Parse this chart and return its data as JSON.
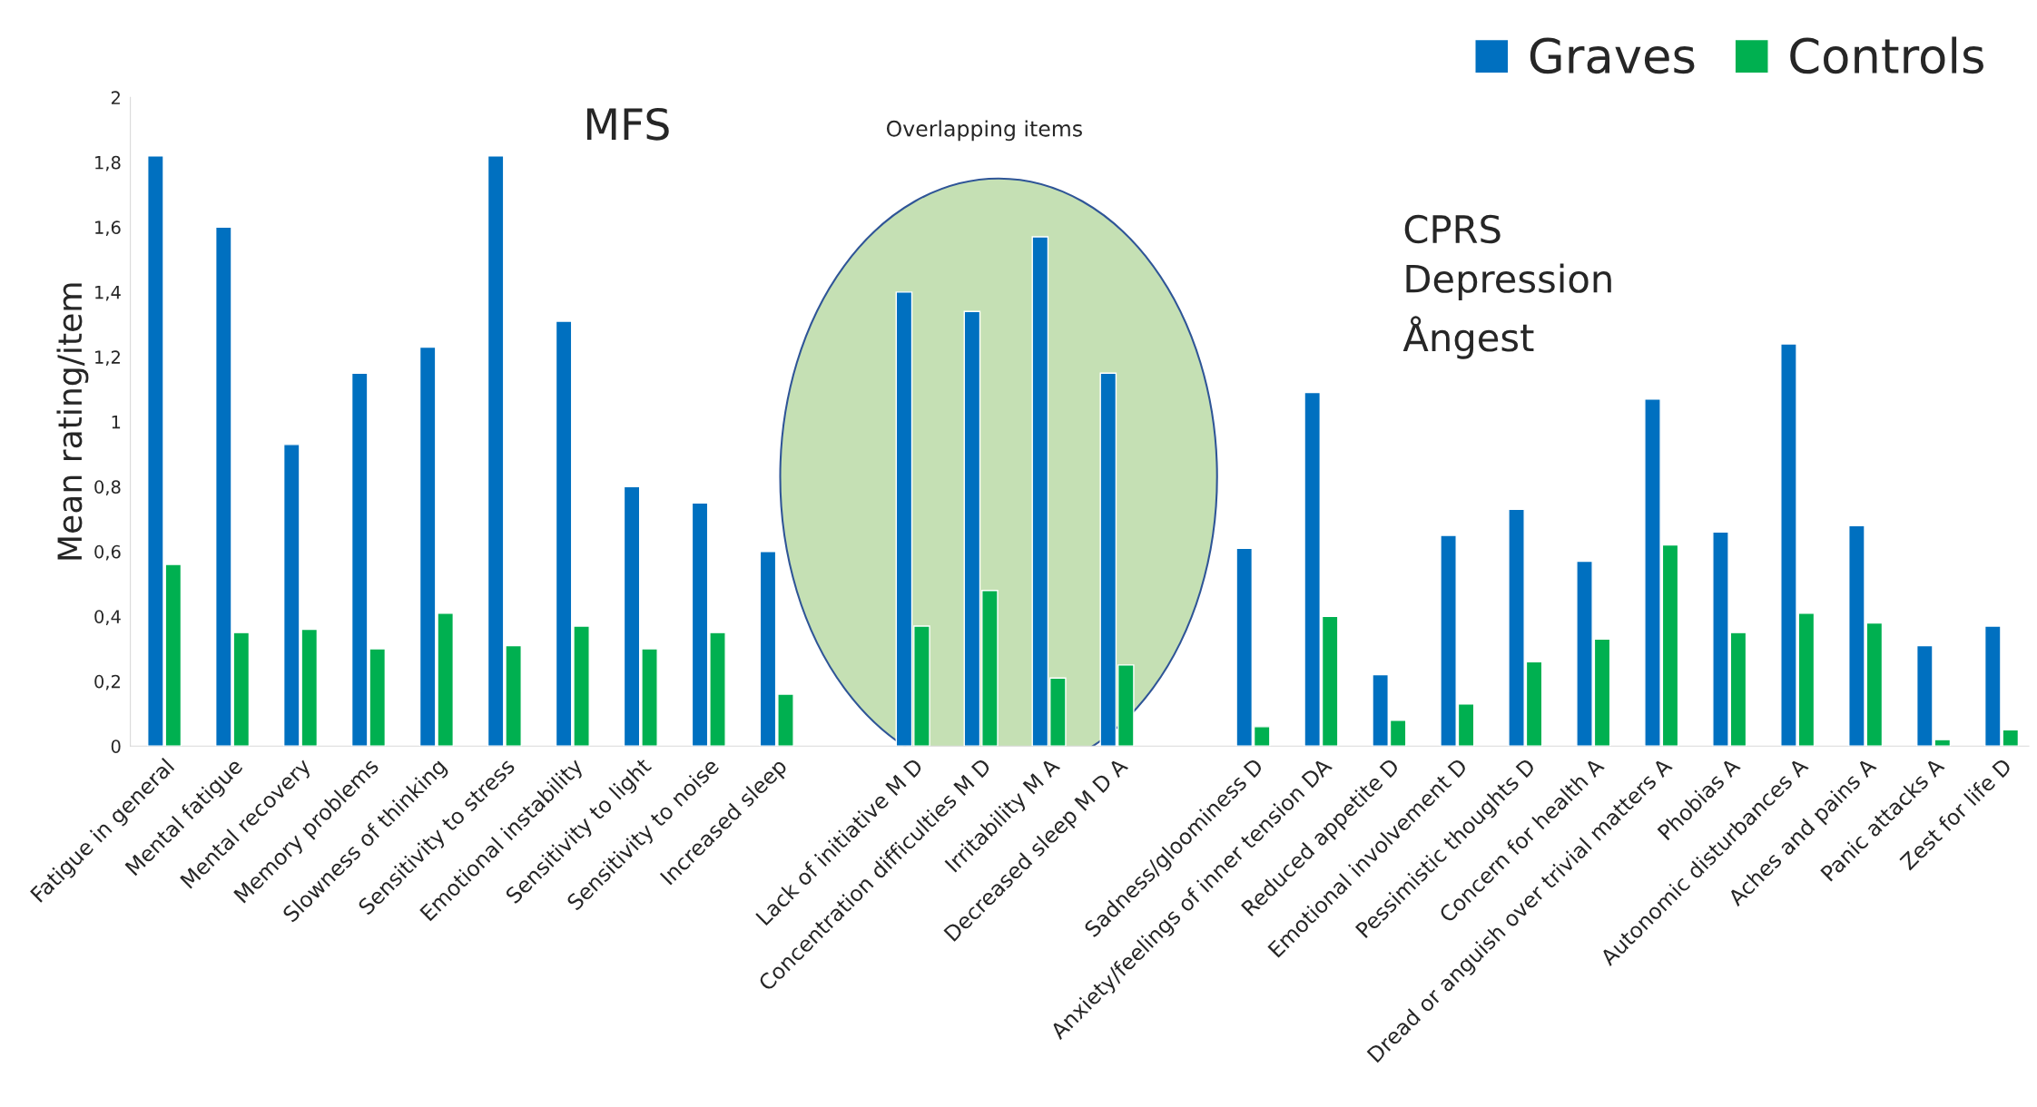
{
  "chart_data": {
    "type": "bar",
    "ylabel": "Mean rating/item",
    "categories": [
      "Fatigue in general",
      "Mental fatigue",
      "Mental recovery",
      "Memory problems",
      "Slowness of thinking",
      "Sensitivity to stress",
      "Emotional instability",
      "Sensitivity to light",
      "Sensitivity to noise",
      "Increased sleep",
      null,
      "Lack of initiative M D",
      "Concentration difficulties M D",
      "Irritability M A",
      "Decreased sleep M D A",
      null,
      "Sadness/gloominess D",
      "Anxiety/feelings of inner tension DA",
      "Reduced appetite D",
      "Emotional involvement D",
      "Pessimistic thoughts D",
      "Concern for health A",
      "Dread or anguish over trivial matters A",
      "Phobias A",
      "Autonomic disturbances A",
      "Aches and pains A",
      "Panic attacks A",
      "Zest for life D"
    ],
    "series": [
      {
        "name": "Graves",
        "color": "#0070c0",
        "values": [
          1.82,
          1.6,
          0.93,
          1.15,
          1.23,
          1.82,
          1.31,
          0.8,
          0.75,
          0.6,
          null,
          1.4,
          1.34,
          1.57,
          1.15,
          null,
          0.61,
          1.09,
          0.22,
          0.65,
          0.73,
          0.57,
          1.07,
          0.66,
          1.24,
          0.68,
          0.31,
          0.37
        ]
      },
      {
        "name": "Controls",
        "color": "#00b050",
        "values": [
          0.56,
          0.35,
          0.36,
          0.3,
          0.41,
          0.31,
          0.37,
          0.3,
          0.35,
          0.16,
          null,
          0.37,
          0.48,
          0.21,
          0.25,
          null,
          0.06,
          0.4,
          0.08,
          0.13,
          0.26,
          0.33,
          0.62,
          0.35,
          0.41,
          0.38,
          0.02,
          0.05
        ]
      }
    ],
    "ylim": [
      0,
      2
    ],
    "yticks": [
      0,
      {
        "value": 0.2,
        "label": "0,2"
      },
      {
        "value": 0.4,
        "label": "0,4"
      },
      {
        "value": 0.6,
        "label": "0,6"
      },
      {
        "value": 0.8,
        "label": "0,8"
      },
      1,
      {
        "value": 1.2,
        "label": "1,2"
      },
      {
        "value": 1.4,
        "label": "1,4"
      },
      {
        "value": 1.6,
        "label": "1,6"
      },
      {
        "value": 1.8,
        "label": "1,8"
      },
      2
    ],
    "annotations": [
      "MFS",
      "Overlapping items",
      "CPRS\nDepression\nÅngest"
    ],
    "legend": "top right",
    "grid": false
  }
}
